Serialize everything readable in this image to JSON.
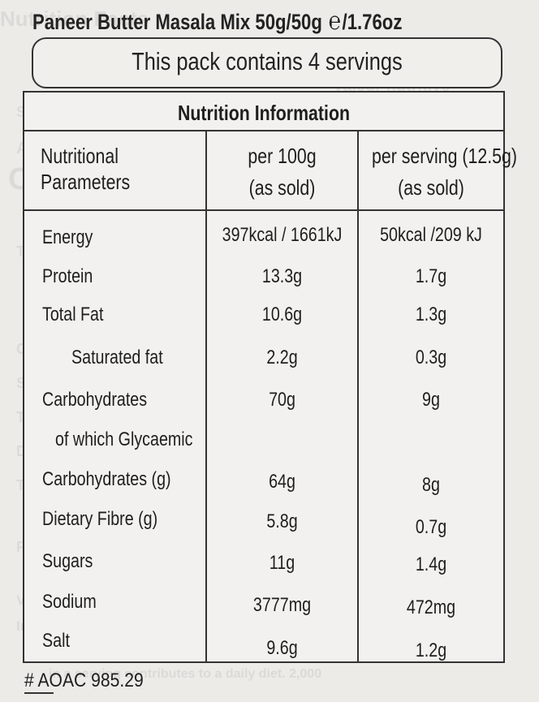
{
  "product": {
    "name_line": "Paneer Butter Masala Mix 50g/50g",
    "estimate_sign": "℮",
    "weight_oz": "/1.76oz",
    "servings_note": "This pack contains 4 servings"
  },
  "table": {
    "title": "Nutrition Information",
    "col_param": [
      "Nutritional",
      "Parameters"
    ],
    "col_100g": [
      "per 100g",
      "(as sold)"
    ],
    "col_serving": [
      "per serving (12.5g)",
      "(as sold)"
    ],
    "rows": [
      {
        "label": "Energy",
        "per100": "397kcal / 1661kJ",
        "serving": "50kcal /209 kJ"
      },
      {
        "label": "Protein",
        "per100": "13.3g",
        "serving": "1.7g"
      },
      {
        "label": "Total Fat",
        "per100": "10.6g",
        "serving": "1.3g"
      },
      {
        "label": "Saturated fat",
        "per100": "2.2g",
        "serving": "0.3g"
      },
      {
        "label": "Carbohydrates",
        "per100": "70g",
        "serving": "9g"
      },
      {
        "label": "of which Glycaemic"
      },
      {
        "label": "Carbohydrates (g)",
        "per100": "64g",
        "serving": "8g"
      },
      {
        "label": "Dietary Fibre (g)",
        "per100": "5.8g",
        "serving": "0.7g"
      },
      {
        "label": "Sugars",
        "per100": "11g",
        "serving": "1.4g"
      },
      {
        "label": "Sodium",
        "per100": "3777mg",
        "serving": "472mg"
      },
      {
        "label": "Salt",
        "per100": "9.6g",
        "serving": "1.2g"
      }
    ]
  },
  "footnote": "# AOAC 985.29",
  "colors": {
    "text": "#1e1e1e",
    "border": "#333333",
    "background": "#ecebe8"
  }
}
